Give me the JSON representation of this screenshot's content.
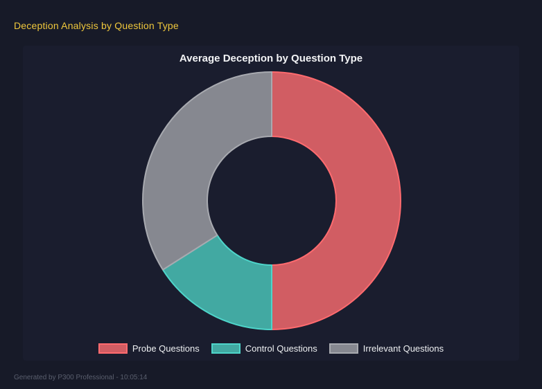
{
  "page": {
    "title": "Deception Analysis by Question Type",
    "footer": "Generated by P300 Professional - 10:05:14"
  },
  "colors": {
    "page_bg": "#171a28",
    "panel_bg": "#1a1d2e",
    "heading": "#f0c83c",
    "title_text": "#f2f3f5",
    "legend_text": "#eef0f2",
    "footer_text": "#5a5f6e"
  },
  "chart_data": {
    "type": "pie",
    "subtype": "doughnut",
    "title": "Average Deception by Question Type",
    "categories": [
      "Probe Questions",
      "Control Questions",
      "Irrelevant Questions"
    ],
    "values_percent": [
      50,
      16,
      34
    ],
    "segments": [
      {
        "label": "Probe Questions",
        "percent": 50,
        "fill": "#d15d63",
        "border": "#ff6b6f"
      },
      {
        "label": "Control Questions",
        "percent": 16,
        "fill": "#42a9a2",
        "border": "#4ed5ca"
      },
      {
        "label": "Irrelevant Questions",
        "percent": 34,
        "fill": "#868890",
        "border": "#a8aab0"
      }
    ],
    "start_angle_deg": 0,
    "direction": "clockwise",
    "cutout_percent": 50,
    "outer_radius_px": 186,
    "inner_radius_px": 93,
    "border_width_px": 2,
    "legend_position": "bottom",
    "grid": false
  }
}
